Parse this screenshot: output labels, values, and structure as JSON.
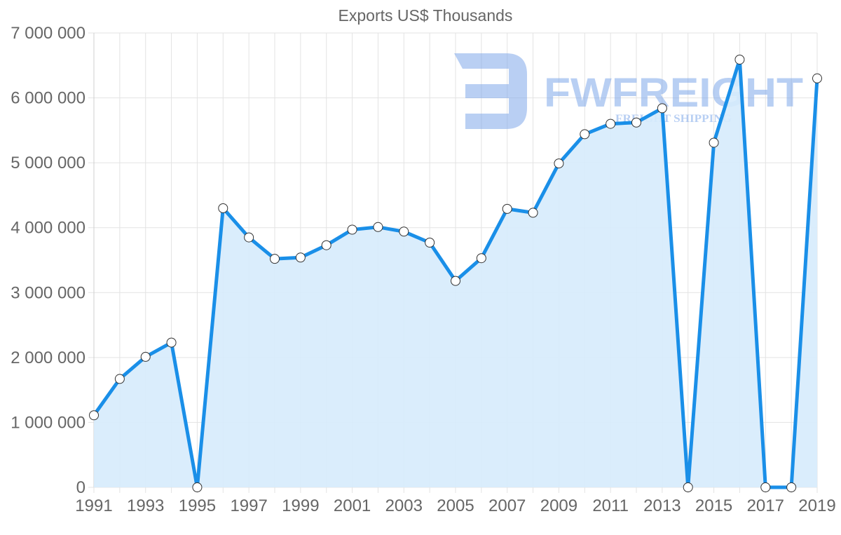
{
  "chart_data": {
    "type": "line",
    "title": "Exports US$ Thousands",
    "xlabel": "",
    "ylabel": "",
    "x": [
      1991,
      1992,
      1993,
      1994,
      1995,
      1996,
      1997,
      1998,
      1999,
      2000,
      2001,
      2002,
      2003,
      2004,
      2005,
      2006,
      2007,
      2008,
      2009,
      2010,
      2011,
      2012,
      2013,
      2014,
      2015,
      2016,
      2017,
      2018,
      2019
    ],
    "series": [
      {
        "name": "Exports US$ Thousands",
        "values": [
          1110000,
          1670000,
          2010000,
          2230000,
          0,
          4300000,
          3850000,
          3520000,
          3540000,
          3730000,
          3970000,
          4010000,
          3940000,
          3770000,
          3180000,
          3530000,
          4290000,
          4230000,
          4990000,
          5440000,
          5600000,
          5620000,
          5840000,
          0,
          5310000,
          6590000,
          0,
          0,
          6300000
        ],
        "color": "#1a8fe8",
        "fill": "#d6ebfc"
      }
    ],
    "ylim": [
      0,
      7000000
    ],
    "yticks": [
      0,
      1000000,
      2000000,
      3000000,
      4000000,
      5000000,
      6000000,
      7000000
    ],
    "ytick_labels": [
      "0",
      "1 000 000",
      "2 000 000",
      "3 000 000",
      "4 000 000",
      "5 000 000",
      "6 000 000",
      "7 000 000"
    ],
    "xtick_labels": [
      "1991",
      "1993",
      "1995",
      "1997",
      "1999",
      "2001",
      "2003",
      "2005",
      "2007",
      "2009",
      "2011",
      "2013",
      "2015",
      "2017",
      "2019"
    ],
    "grid": true,
    "legend": null,
    "area_fill": true
  },
  "watermark": {
    "brand": "FWFREIGHT",
    "tagline": "FREIGHT SHIPPING",
    "color": "#7fa8ea"
  }
}
